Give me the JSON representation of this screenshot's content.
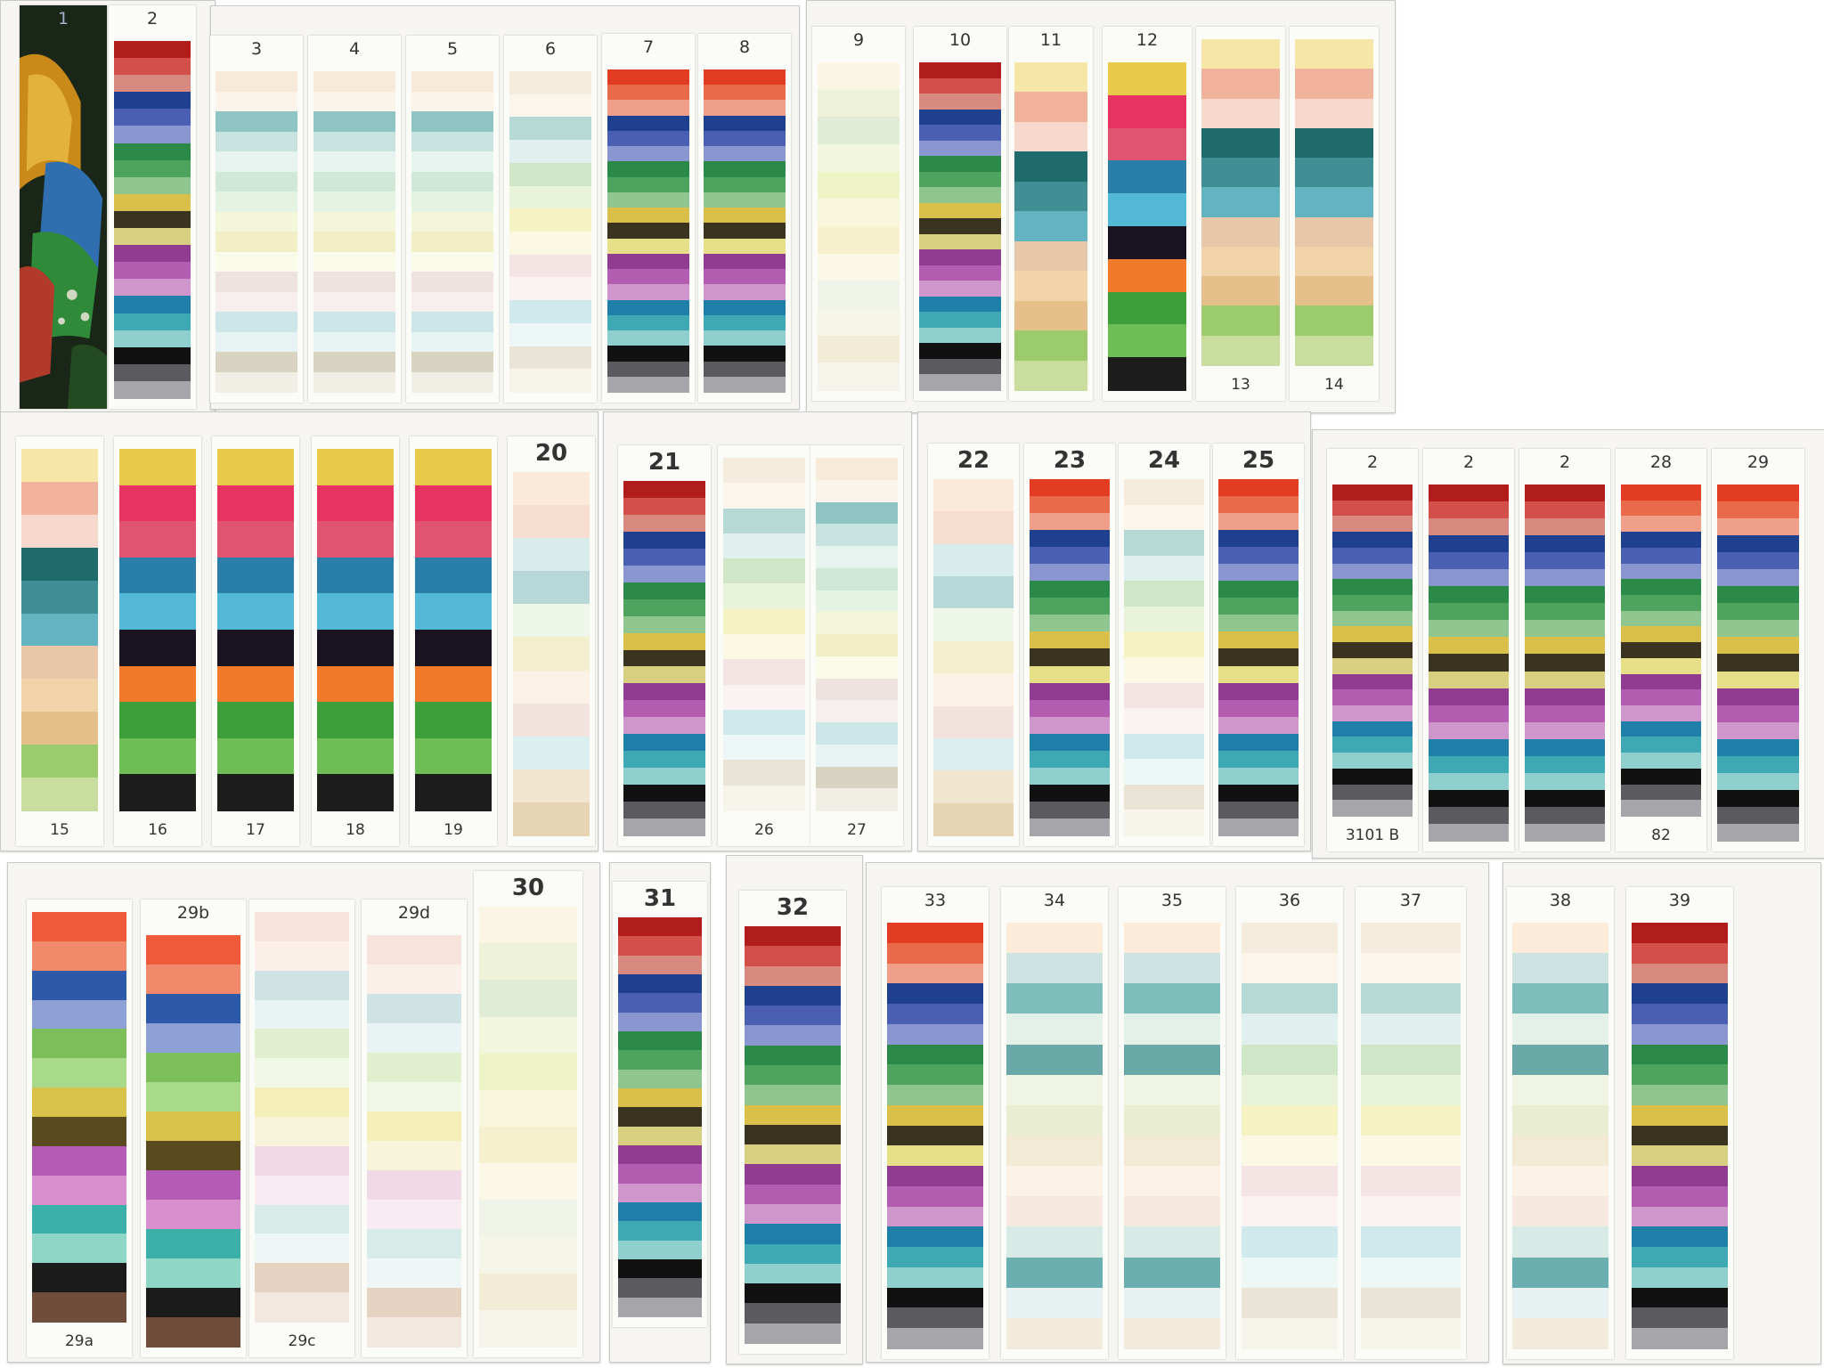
{
  "palettes": {
    "full": [
      "#b01d1a",
      "#d3504a",
      "#d98a80",
      "#1f3f8f",
      "#4a5fb2",
      "#8a96cf",
      "#2b8a47",
      "#4ea45e",
      "#8fc58f",
      "#d9c04a",
      "#3a3320",
      "#d8cf80",
      "#8f3c91",
      "#b25db0",
      "#cf96cc",
      "#1f7fa8",
      "#3fa9b3",
      "#8fd0cf",
      "#111111",
      "#5a5a5f",
      "#a5a5aa"
    ],
    "full_orange": [
      "#e23d22",
      "#e86a4a",
      "#f0a089",
      "#1f3f8f",
      "#4a5fb2",
      "#8a96cf",
      "#2b8a47",
      "#4ea45e",
      "#8fc58f",
      "#d9c04a",
      "#3a3320",
      "#e6df88",
      "#8f3c91",
      "#b25db0",
      "#cf96cc",
      "#1f7fa8",
      "#3fa9b3",
      "#8fd0cf",
      "#111111",
      "#5a5a5f",
      "#a5a5aa"
    ],
    "pale_teal": [
      "#f7ead9",
      "#fbf4ea",
      "#8fc4c4",
      "#c8e2df",
      "#e6f3ef",
      "#cfe8d8",
      "#e5f3e2",
      "#f4f6d9",
      "#f2efc7",
      "#fbfbe9",
      "#efe3e0",
      "#f7eeee",
      "#cde6e7",
      "#e6f3f2",
      "#d9d3c2",
      "#f1efe5"
    ],
    "pale_green_yellow": [
      "#f6ecde",
      "#fbf5ec",
      "#b6d9d6",
      "#dff0ee",
      "#cfe7c6",
      "#e9f3da",
      "#f5f2c4",
      "#fbf8e3",
      "#f4e4e4",
      "#fbf3f3",
      "#cfe9ec",
      "#edf7f6",
      "#e9e4d6",
      "#f7f4ec"
    ],
    "pale_lemon": [
      "#fbf6e4",
      "#eef2d8",
      "#e0ecd6",
      "#f2f6dc",
      "#eef4c8",
      "#f8f6dc",
      "#f6f0ce",
      "#fbf8e8",
      "#eff3e8",
      "#f5f6e8",
      "#f2ecd6",
      "#f6f4ea"
    ],
    "marker_warm": [
      "#f6e6a8",
      "#f1b39c",
      "#f6d8cc",
      "#1f6b6b",
      "#3f8f95",
      "#64b3c0",
      "#e8c7a8",
      "#f0d3a8",
      "#e6c08a",
      "#9ccb6e",
      "#c9dd9e"
    ],
    "marker_bright": [
      "#e8c94a",
      "#e6335f",
      "#e05472",
      "#2a7fa8",
      "#53b7d6",
      "#1a1420",
      "#f07a2a",
      "#3c9f3a",
      "#6fbd55",
      "#1d1d1d"
    ],
    "pale_peach": [
      "#fbead9",
      "#f7dcd0",
      "#d9ecec",
      "#b8d8d8",
      "#eef6ea",
      "#f4f0cf",
      "#fbf1e5",
      "#f2e3df",
      "#dbeff0",
      "#f0e6cf",
      "#e6d4b4"
    ],
    "mottled": [
      "#ef5a3a",
      "#f08a6a",
      "#2c5aa8",
      "#8ea1d6",
      "#7cbf5a",
      "#a9d98a",
      "#d8c24a",
      "#5a4a20",
      "#b45bb5",
      "#d78fce",
      "#3bb0a8",
      "#8fd6c6",
      "#1b1b1b",
      "#6e4e3a"
    ],
    "mottled_pale": [
      "#f7e3dc",
      "#fbefea",
      "#cfe2e4",
      "#eaf3f3",
      "#e1efcf",
      "#f2f8e6",
      "#f4efb6",
      "#f8f4d9",
      "#f1d9e6",
      "#f8ecf2",
      "#d7ece9",
      "#eef7f5",
      "#e6d2c0",
      "#f2e8e0"
    ],
    "cool_fades": [
      "#fbebd8",
      "#cde3e2",
      "#7fbdbd",
      "#e4f1e8",
      "#6aa8a8",
      "#f0f4e2",
      "#e9eed2",
      "#f3ead6",
      "#fbf2e5",
      "#f4e8df",
      "#d7eae6",
      "#6aaeb0",
      "#e7f1f1",
      "#f2ebdc"
    ]
  },
  "boards": [
    {
      "id": "board-a"
    },
    {
      "id": "board-b"
    },
    {
      "id": "board-c"
    },
    {
      "id": "board-d"
    },
    {
      "id": "board-e"
    },
    {
      "id": "board-f"
    },
    {
      "id": "board-g"
    },
    {
      "id": "board-h"
    },
    {
      "id": "board-i"
    },
    {
      "id": "board-j"
    },
    {
      "id": "board-k"
    }
  ],
  "strips": [
    {
      "label": "1",
      "palette": "photo"
    },
    {
      "label": "2",
      "palette": "full"
    },
    {
      "label": "3",
      "palette": "pale_teal"
    },
    {
      "label": "4",
      "palette": "pale_teal"
    },
    {
      "label": "5",
      "palette": "pale_teal"
    },
    {
      "label": "6",
      "palette": "pale_green_yellow"
    },
    {
      "label": "7",
      "palette": "full_orange"
    },
    {
      "label": "8",
      "palette": "full_orange"
    },
    {
      "label": "9",
      "palette": "pale_lemon"
    },
    {
      "label": "10",
      "palette": "full"
    },
    {
      "label": "11",
      "palette": "marker_warm"
    },
    {
      "label": "12",
      "palette": "marker_bright"
    },
    {
      "label": "",
      "sublabel": "13",
      "palette": "marker_warm"
    },
    {
      "label": "",
      "sublabel": "14",
      "palette": "marker_warm"
    },
    {
      "label": "",
      "sublabel": "15",
      "palette": "marker_warm"
    },
    {
      "label": "",
      "sublabel": "16",
      "palette": "marker_bright"
    },
    {
      "label": "",
      "sublabel": "17",
      "palette": "marker_bright"
    },
    {
      "label": "",
      "sublabel": "18",
      "palette": "marker_bright"
    },
    {
      "label": "",
      "sublabel": "19",
      "palette": "marker_bright"
    },
    {
      "label": "20",
      "palette": "pale_peach"
    },
    {
      "label": "21",
      "palette": "full"
    },
    {
      "label": "",
      "sublabel": "26",
      "palette": "pale_green_yellow"
    },
    {
      "label": "",
      "sublabel": "27",
      "palette": "pale_teal"
    },
    {
      "label": "22",
      "palette": "pale_peach"
    },
    {
      "label": "23",
      "palette": "full_orange"
    },
    {
      "label": "24",
      "palette": "pale_green_yellow"
    },
    {
      "label": "25",
      "palette": "full_orange"
    },
    {
      "label": "2",
      "sublabel": "3101 B",
      "palette": "full"
    },
    {
      "label": "2",
      "palette": "full"
    },
    {
      "label": "2",
      "palette": "full"
    },
    {
      "label": "28",
      "sublabel": "82",
      "palette": "full_orange"
    },
    {
      "label": "29",
      "palette": "full_orange"
    },
    {
      "label": "",
      "sublabel": "29a",
      "palette": "mottled"
    },
    {
      "label": "29b",
      "palette": "mottled"
    },
    {
      "label": "",
      "sublabel": "29c",
      "palette": "mottled_pale"
    },
    {
      "label": "29d",
      "palette": "mottled_pale"
    },
    {
      "label": "30",
      "palette": "pale_lemon"
    },
    {
      "label": "31",
      "palette": "full"
    },
    {
      "label": "32",
      "palette": "full"
    },
    {
      "label": "33",
      "palette": "full_orange"
    },
    {
      "label": "34",
      "palette": "cool_fades"
    },
    {
      "label": "35",
      "palette": "cool_fades"
    },
    {
      "label": "36",
      "palette": "pale_green_yellow"
    },
    {
      "label": "37",
      "palette": "pale_green_yellow"
    },
    {
      "label": "38",
      "palette": "cool_fades"
    },
    {
      "label": "39",
      "palette": "full"
    }
  ]
}
